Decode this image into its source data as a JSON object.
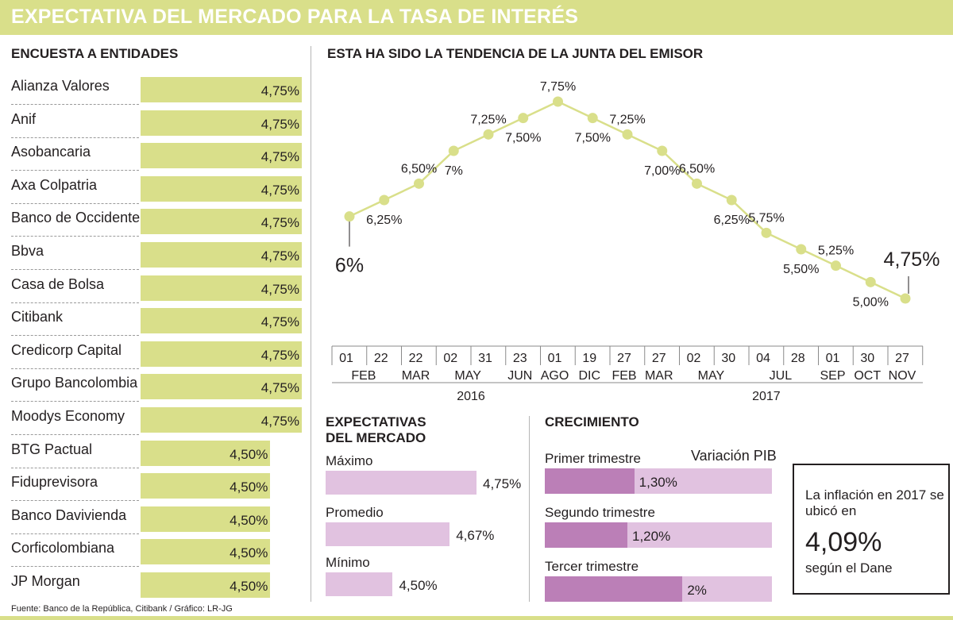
{
  "title": "EXPECTATIVA DEL MERCADO PARA LA TASA DE INTERÉS",
  "survey": {
    "heading": "ENCUESTA A ENTIDADES",
    "max_value": 4.75,
    "rows": [
      {
        "name": "Alianza Valores",
        "value": 4.75,
        "label": "4,75%"
      },
      {
        "name": "Anif",
        "value": 4.75,
        "label": "4,75%"
      },
      {
        "name": "Asobancaria",
        "value": 4.75,
        "label": "4,75%"
      },
      {
        "name": "Axa Colpatria",
        "value": 4.75,
        "label": "4,75%"
      },
      {
        "name": "Banco de Occidente",
        "value": 4.75,
        "label": "4,75%"
      },
      {
        "name": "Bbva",
        "value": 4.75,
        "label": "4,75%"
      },
      {
        "name": "Casa de Bolsa",
        "value": 4.75,
        "label": "4,75%"
      },
      {
        "name": "Citibank",
        "value": 4.75,
        "label": "4,75%"
      },
      {
        "name": "Credicorp Capital",
        "value": 4.75,
        "label": "4,75%"
      },
      {
        "name": "Grupo Bancolombia",
        "value": 4.75,
        "label": "4,75%"
      },
      {
        "name": "Moodys Economy",
        "value": 4.75,
        "label": "4,75%"
      },
      {
        "name": "BTG Pactual",
        "value": 4.5,
        "label": "4,50%"
      },
      {
        "name": "Fiduprevisora",
        "value": 4.5,
        "label": "4,50%"
      },
      {
        "name": "Banco Davivienda",
        "value": 4.5,
        "label": "4,50%"
      },
      {
        "name": "Corficolombiana",
        "value": 4.5,
        "label": "4,50%"
      },
      {
        "name": "JP Morgan",
        "value": 4.5,
        "label": "4,50%"
      }
    ]
  },
  "chart_data": {
    "type": "line",
    "title": "ESTA HA SIDO LA TENDENCIA DE LA JUNTA DEL EMISOR",
    "x": [
      "01 FEB 2016",
      "22 FEB 2016",
      "22 MAR 2016",
      "02 MAY 2016",
      "31 MAY 2016",
      "23 JUN 2016",
      "01 AGO 2016",
      "19 DIC 2016",
      "27 FEB 2017",
      "27 MAR 2017",
      "02 MAY 2017",
      "30 MAY 2017",
      "04 JUL 2017",
      "28 JUL 2017",
      "01 SEP 2017",
      "30 OCT 2017",
      "27 NOV 2017"
    ],
    "values": [
      6.0,
      6.25,
      6.5,
      7.0,
      7.25,
      7.5,
      7.75,
      7.5,
      7.25,
      7.0,
      6.5,
      6.25,
      5.75,
      5.5,
      5.25,
      5.0,
      4.75
    ],
    "point_labels": [
      "6%",
      "6,25%",
      "6,50%",
      "7%",
      "7,25%",
      "7,50%",
      "7,75%",
      "7,50%",
      "7,25%",
      "7,00%",
      "6,50%",
      "6,25%",
      "5,75%",
      "5,50%",
      "5,25%",
      "5,00%",
      "4,75%"
    ],
    "label_pos": [
      "below-big",
      "below",
      "above",
      "below",
      "above",
      "below",
      "above",
      "below",
      "above",
      "below",
      "above",
      "below",
      "above",
      "below",
      "above",
      "below",
      "above-big"
    ],
    "days": [
      "01",
      "22",
      "22",
      "02",
      "31",
      "23",
      "01",
      "19",
      "27",
      "27",
      "02",
      "30",
      "04",
      "28",
      "01",
      "30",
      "27"
    ],
    "months": [
      {
        "label": "FEB",
        "index": 0.5
      },
      {
        "label": "MAR",
        "index": 2
      },
      {
        "label": "MAY",
        "index": 3.5
      },
      {
        "label": "JUN",
        "index": 5
      },
      {
        "label": "AGO",
        "index": 6
      },
      {
        "label": "DIC",
        "index": 7
      },
      {
        "label": "FEB",
        "index": 8
      },
      {
        "label": "MAR",
        "index": 9
      },
      {
        "label": "MAY",
        "index": 10.5
      },
      {
        "label": "JUL",
        "index": 12.5
      },
      {
        "label": "SEP",
        "index": 14
      },
      {
        "label": "OCT",
        "index": 15
      },
      {
        "label": "NOV",
        "index": 16
      }
    ],
    "years": [
      {
        "label": "2016",
        "from": 0,
        "to": 7
      },
      {
        "label": "2017",
        "from": 8,
        "to": 16
      }
    ],
    "ylim": [
      4.5,
      8.0
    ],
    "color": "#d9df8a"
  },
  "expectations": {
    "heading_line1": "EXPECTATIVAS",
    "heading_line2": "DEL MERCADO",
    "scale_max": 4.75,
    "items": [
      {
        "label": "Máximo",
        "value": 4.75,
        "text": "4,75%"
      },
      {
        "label": "Promedio",
        "value": 4.67,
        "text": "4,67%"
      },
      {
        "label": "Mínimo",
        "value": 4.5,
        "text": "4,50%"
      }
    ]
  },
  "growth": {
    "heading": "CRECIMIENTO",
    "series_label": "Variación PIB",
    "scale_max": 3.3,
    "items": [
      {
        "label": "Primer trimestre",
        "value": 1.3,
        "text": "1,30%"
      },
      {
        "label": "Segundo trimestre",
        "value": 1.2,
        "text": "1,20%"
      },
      {
        "label": "Tercer trimestre",
        "value": 2.0,
        "text": "2%"
      }
    ]
  },
  "inflation": {
    "text": "La inflación en 2017 se ubicó en",
    "value": "4,09%",
    "source": "según el Dane"
  },
  "source": "Fuente: Banco de la República, Citibank / Gráfico: LR-JG",
  "colors": {
    "green": "#d9df8a",
    "pink_light": "#e1c2e0",
    "pink_dark": "#bb7fb7",
    "text": "#231f20"
  }
}
